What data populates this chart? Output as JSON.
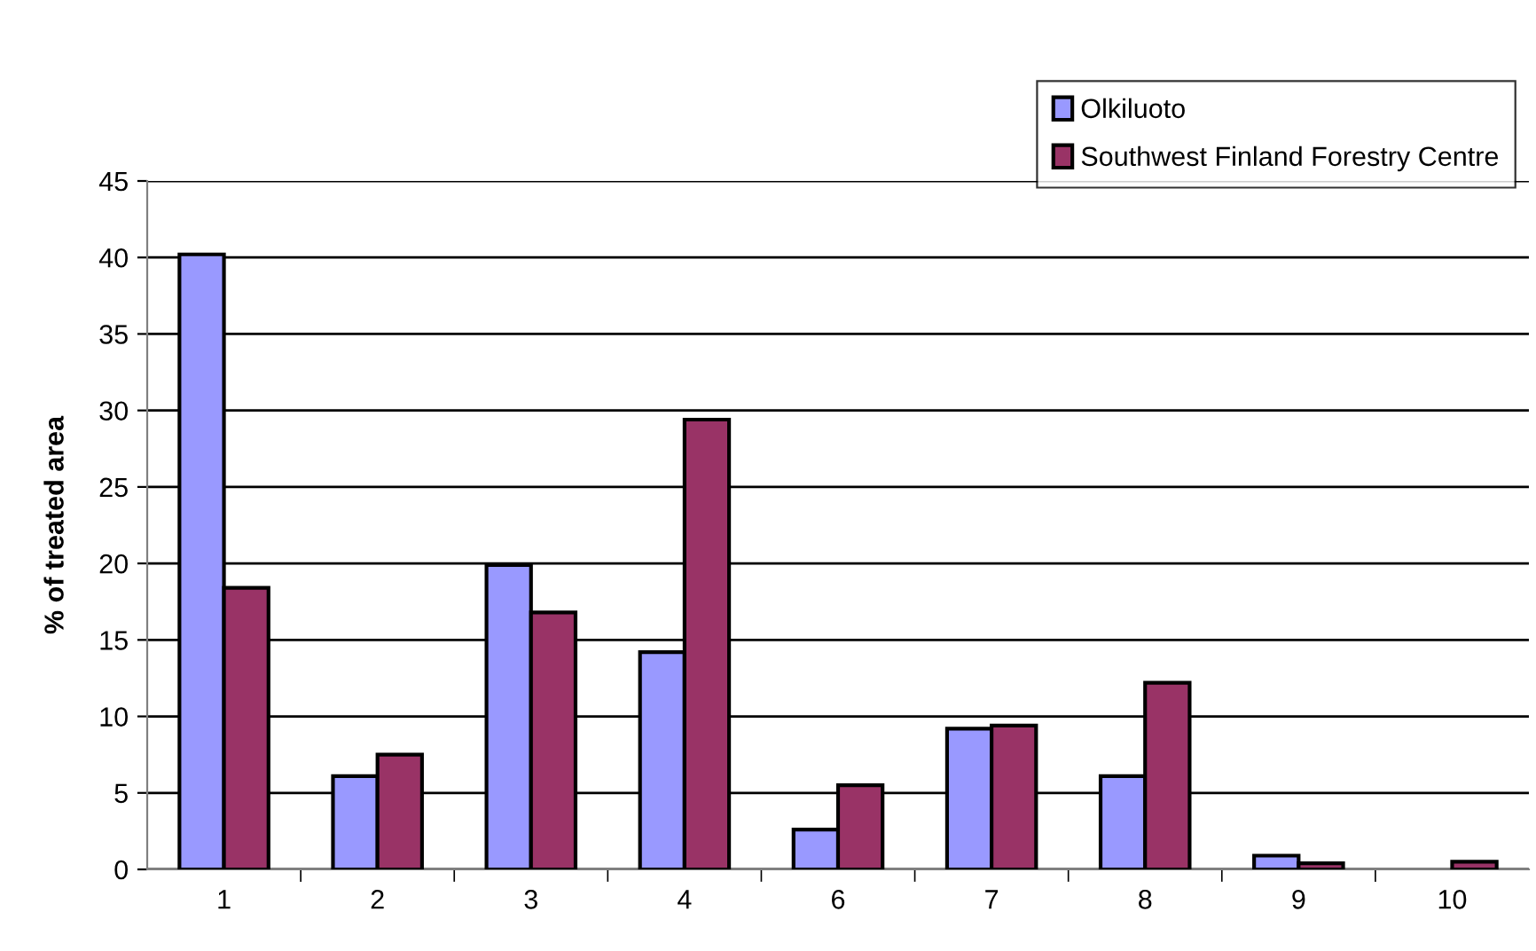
{
  "chart_data": {
    "type": "bar",
    "ylabel": "% of treated area",
    "categories": [
      "1",
      "2",
      "3",
      "4",
      "6",
      "7",
      "8",
      "9",
      "10"
    ],
    "series": [
      {
        "name": "Olkiluoto",
        "color": "#9999ff",
        "values": [
          40.2,
          6.1,
          19.9,
          14.2,
          2.6,
          9.2,
          6.1,
          0.9,
          null
        ]
      },
      {
        "name": "Southwest Finland Forestry Centre",
        "color": "#993366",
        "values": [
          18.4,
          7.5,
          16.8,
          29.4,
          5.5,
          9.4,
          12.2,
          0.4,
          0.5
        ]
      }
    ],
    "ylim": [
      0,
      45
    ],
    "yticks": [
      0,
      5,
      10,
      15,
      20,
      25,
      30,
      35,
      40,
      45
    ],
    "grid": "y",
    "legend": "top right"
  }
}
